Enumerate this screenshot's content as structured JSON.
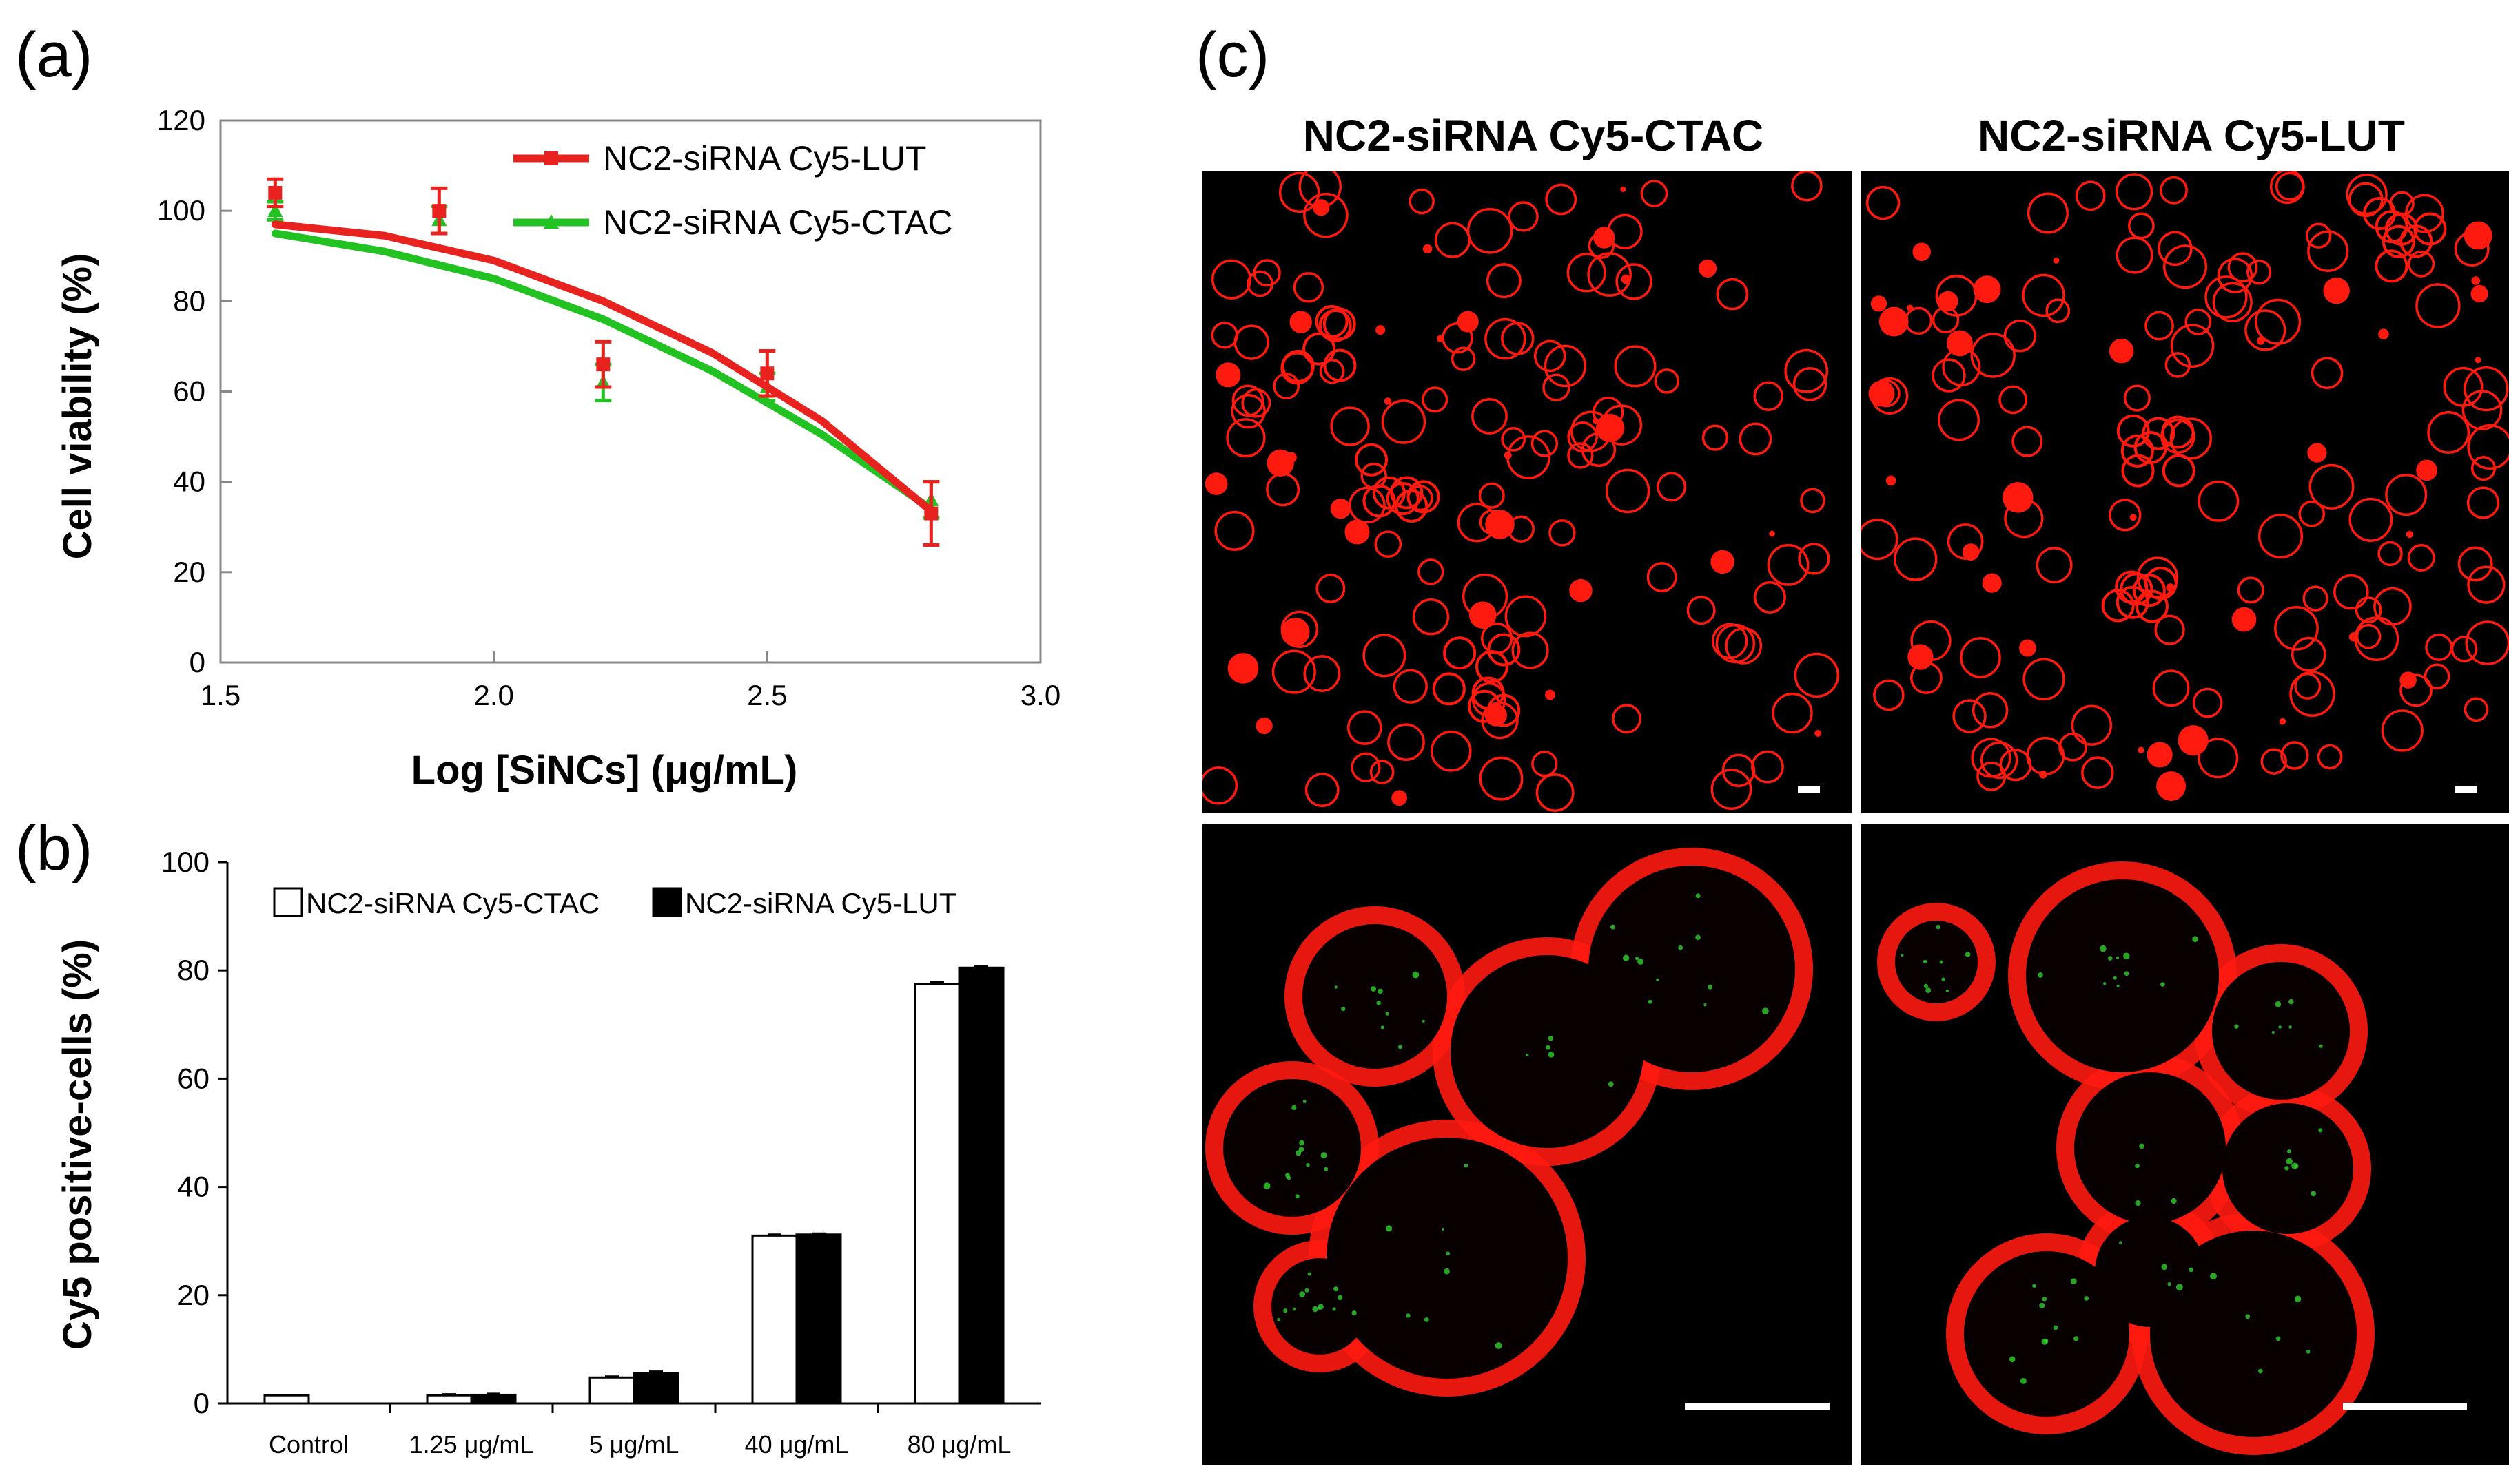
{
  "colors": {
    "lut": "#e8221f",
    "ctac": "#22c222",
    "bar_ctac_fill": "#ffffff",
    "bar_lut_fill": "#000000",
    "cell_red": "#ff1a10",
    "scale_bar": "#ffffff"
  },
  "panels": {
    "a_label": "(a)",
    "b_label": "(b)",
    "c_label": "(c)"
  },
  "chart_data": [
    {
      "type": "line",
      "panel": "a",
      "xlabel": "Log [SiNCs] (μg/mL)",
      "ylabel": "Cell viability (%)",
      "xlim": [
        1.5,
        3.0
      ],
      "ylim": [
        0,
        120
      ],
      "xticks": [
        "1.5",
        "2.0",
        "2.5",
        "3.0"
      ],
      "yticks": [
        "0",
        "20",
        "40",
        "60",
        "80",
        "100",
        "120"
      ],
      "legend_position": "top-right",
      "series": [
        {
          "name": "NC2-siRNA Cy5-LUT",
          "color": "#e8221f",
          "points": [
            {
              "x": 1.6,
              "y": 104,
              "err": 3
            },
            {
              "x": 1.9,
              "y": 100,
              "err": 5
            },
            {
              "x": 2.2,
              "y": 66,
              "err": 5
            },
            {
              "x": 2.5,
              "y": 64,
              "err": 5
            },
            {
              "x": 2.8,
              "y": 33,
              "err": 7
            }
          ],
          "fit": [
            [
              1.6,
              97
            ],
            [
              1.8,
              94.5
            ],
            [
              2.0,
              89
            ],
            [
              2.2,
              80
            ],
            [
              2.4,
              68.5
            ],
            [
              2.6,
              53.5
            ],
            [
              2.8,
              33.5
            ]
          ]
        },
        {
          "name": "NC2-siRNA Cy5-CTAC",
          "color": "#22c222",
          "points": [
            {
              "x": 1.6,
              "y": 100,
              "err": 2
            },
            {
              "x": 1.9,
              "y": 98,
              "err": 3
            },
            {
              "x": 2.2,
              "y": 62,
              "err": 4
            },
            {
              "x": 2.5,
              "y": 61,
              "err": 3
            },
            {
              "x": 2.8,
              "y": 36,
              "err": 4
            }
          ],
          "fit": [
            [
              1.6,
              95
            ],
            [
              1.8,
              91
            ],
            [
              2.0,
              85
            ],
            [
              2.2,
              76
            ],
            [
              2.4,
              64.5
            ],
            [
              2.6,
              50.5
            ],
            [
              2.8,
              34
            ]
          ]
        }
      ]
    },
    {
      "type": "bar",
      "panel": "b",
      "ylabel": "Cy5 positive-cells (%)",
      "ylim": [
        0,
        100
      ],
      "yticks": [
        "0",
        "20",
        "40",
        "60",
        "80",
        "100"
      ],
      "categories": [
        "Control",
        "1.25 μg/mL",
        "5 μg/mL",
        "40 μg/mL",
        "80 μg/mL"
      ],
      "legend_position": "top",
      "series": [
        {
          "name": "NC2-siRNA Cy5-CTAC",
          "fill": "#ffffff",
          "values": [
            1.5,
            1.5,
            4.8,
            31,
            77.5
          ],
          "errors": [
            0,
            0.2,
            0.2,
            0.2,
            0.3
          ]
        },
        {
          "name": "NC2-siRNA Cy5-LUT",
          "fill": "#000000",
          "values": [
            0,
            1.6,
            5.6,
            31.2,
            80.5
          ],
          "errors": [
            0,
            0.2,
            0.3,
            0.2,
            0.3
          ]
        }
      ]
    }
  ],
  "microscopy": {
    "col1_title": "NC2-siRNA Cy5-CTAC",
    "col2_title": "NC2-siRNA Cy5-LUT"
  }
}
